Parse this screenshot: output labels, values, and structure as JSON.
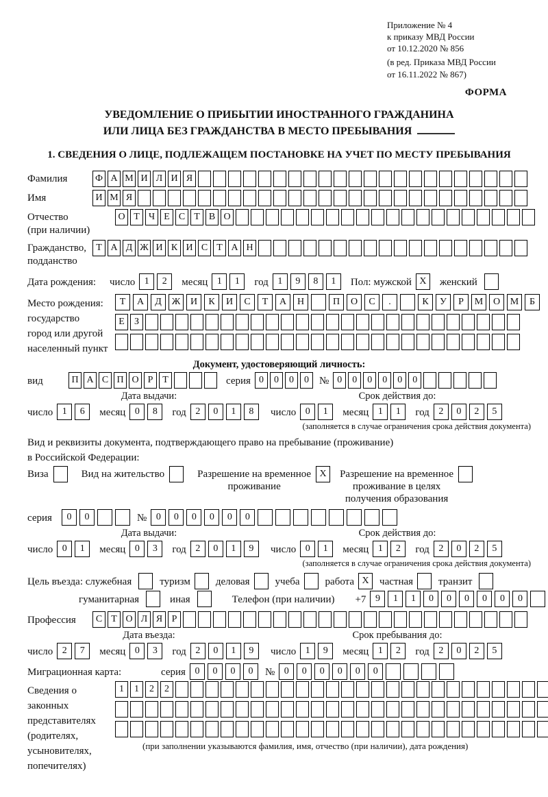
{
  "header": {
    "appendix_lines": [
      "Приложение № 4",
      "к приказу МВД России",
      "от 10.12.2020 № 856"
    ],
    "amendment_lines": [
      "(в ред. Приказа МВД России",
      "от 16.11.2022 № 867)"
    ],
    "form_label": "ФОРМА"
  },
  "title": {
    "line1": "УВЕДОМЛЕНИЕ О ПРИБЫТИИ ИНОСТРАННОГО ГРАЖДАНИНА",
    "line2": "ИЛИ ЛИЦА БЕЗ ГРАЖДАНСТВА В МЕСТО ПРЕБЫВАНИЯ"
  },
  "section1_heading": "1. СВЕДЕНИЯ О ЛИЦЕ, ПОДЛЕЖАЩЕМ ПОСТАНОВКЕ НА УЧЕТ ПО МЕСТУ ПРЕБЫВАНИЯ",
  "labels": {
    "surname": "Фамилия",
    "given_name": "Имя",
    "patronymic": "Отчество",
    "patronymic2": "(при наличии)",
    "citizenship": "Гражданство,",
    "citizenship2": "подданство",
    "birth_date": "Дата рождения:",
    "day": "число",
    "month": "месяц",
    "year": "год",
    "sex": "Пол: мужской",
    "female": "женский",
    "birthplace1": "Место рождения:",
    "birthplace2": "государство",
    "birthplace3": "город или другой",
    "birthplace4": "населенный пункт",
    "id_doc_heading": "Документ, удостоверяющий личность:",
    "doc_type": "вид",
    "series": "серия",
    "number": "№",
    "issue_date": "Дата выдачи:",
    "valid_until": "Срок действия до:",
    "valid_note": "(заполняется в случае ограничения срока действия документа)",
    "residence_doc_line1": "Вид и реквизиты документа, подтверждающего право на пребывание (проживание)",
    "residence_doc_line2": "в Российской Федерации:",
    "visa": "Виза",
    "residence_permit": "Вид на жительство",
    "temp_residence_1": "Разрешение на временное",
    "temp_residence_2": "проживание",
    "temp_edu_1": "Разрешение на временное",
    "temp_edu_2": "проживание в целях",
    "temp_edu_3": "получения образования",
    "purpose": "Цель въезда: служебная",
    "tourism": "туризм",
    "business": "деловая",
    "study": "учеба",
    "work": "работа",
    "private": "частная",
    "transit": "транзит",
    "humanitarian": "гуманитарная",
    "other": "иная",
    "phone": "Телефон (при наличии)",
    "phone_prefix": "+7",
    "profession": "Профессия",
    "entry_date": "Дата въезда:",
    "stay_until": "Срок пребывания до:",
    "migration_card": "Миграционная карта:",
    "reps1": "Сведения о",
    "reps2": "законных",
    "reps3": "представителях",
    "reps4": "(родителях,",
    "reps5": "усыновителях,",
    "reps6": "попечителях)",
    "reps_note": "(при заполнении указываются фамилия, имя, отчество (при наличии), дата рождения)"
  },
  "cells": {
    "surname": {
      "value": "ФАМИЛИЯ",
      "cells": 29
    },
    "given_name": {
      "value": "ИМЯ",
      "cells": 29
    },
    "patronymic": {
      "value": "ОТЧЕСТВО",
      "cells": 28
    },
    "citizenship": {
      "value": "ТАДЖИКИСТАН",
      "cells": 29
    },
    "birth_day": {
      "value": "12",
      "cells": 2
    },
    "birth_month": {
      "value": "11",
      "cells": 2
    },
    "birth_year": {
      "value": "1981",
      "cells": 4
    },
    "birthplace_row1": {
      "value": "ТАДЖИКИСТАН ПОС. КУРМОМБ",
      "cells": 24
    },
    "birthplace_row2": {
      "value": "ЕЗ",
      "cells": 27
    },
    "birthplace_row3": {
      "value": "",
      "cells": 27
    },
    "id_doc_type": {
      "value": "ПАСПОРТ",
      "cells": 10
    },
    "id_series": {
      "value": "0000",
      "cells": 4
    },
    "id_number": {
      "value": "000000",
      "cells": 11
    },
    "id_issue_day": {
      "value": "16",
      "cells": 2
    },
    "id_issue_month": {
      "value": "08",
      "cells": 2
    },
    "id_issue_year": {
      "value": "2018",
      "cells": 4
    },
    "id_valid_day": {
      "value": "01",
      "cells": 2
    },
    "id_valid_month": {
      "value": "11",
      "cells": 2
    },
    "id_valid_year": {
      "value": "2025",
      "cells": 4
    },
    "permit_series": {
      "value": "00",
      "cells": 4
    },
    "permit_number": {
      "value": "000000",
      "cells": 14
    },
    "permit_issue_day": {
      "value": "01",
      "cells": 2
    },
    "permit_issue_month": {
      "value": "03",
      "cells": 2
    },
    "permit_issue_year": {
      "value": "2019",
      "cells": 4
    },
    "permit_valid_day": {
      "value": "01",
      "cells": 2
    },
    "permit_valid_month": {
      "value": "12",
      "cells": 2
    },
    "permit_valid_year": {
      "value": "2025",
      "cells": 4
    },
    "phone": {
      "value": "911000000",
      "cells": 10
    },
    "profession": {
      "value": "СТОЛЯР",
      "cells": 29
    },
    "entry_day": {
      "value": "27",
      "cells": 2
    },
    "entry_month": {
      "value": "03",
      "cells": 2
    },
    "entry_year": {
      "value": "2019",
      "cells": 4
    },
    "stay_day": {
      "value": "19",
      "cells": 2
    },
    "stay_month": {
      "value": "12",
      "cells": 2
    },
    "stay_year": {
      "value": "2025",
      "cells": 4
    },
    "migcard_series": {
      "value": "0000",
      "cells": 4
    },
    "migcard_number": {
      "value": "000000",
      "cells": 10
    },
    "reps_row1": {
      "value": "1122",
      "cells": 29
    },
    "reps_row2": {
      "value": "",
      "cells": 29
    },
    "reps_row3": {
      "value": "",
      "cells": 29
    }
  },
  "checks": {
    "male": "X",
    "female": "",
    "visa": "",
    "residence_permit": "",
    "temp_residence": "X",
    "temp_edu": "",
    "official": "",
    "tourism": "",
    "business": "",
    "study": "",
    "work": "X",
    "private": "",
    "transit": "",
    "humanitarian": "",
    "other": ""
  }
}
